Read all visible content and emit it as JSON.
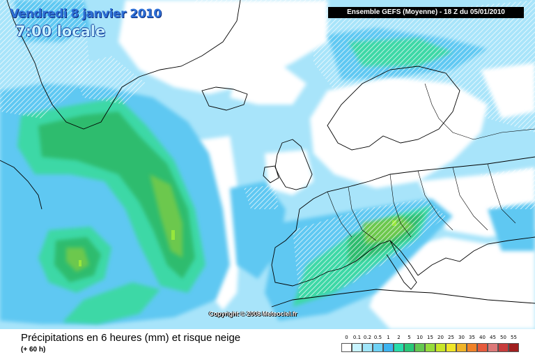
{
  "header": {
    "date": "Vendredi 8 janvier 2010",
    "time": "7:00 locale",
    "run": "Ensemble GEFS (Moyenne)  -  18 Z du 05/01/2010"
  },
  "copyright": "Copyright © 2008 Meteociel.fr",
  "legend": {
    "title": "Précipitations en 6 heures (mm) et risque neige",
    "subtitle": "(+ 60 h)",
    "scale": [
      {
        "label": "0",
        "color": "#ffffff"
      },
      {
        "label": "0.1",
        "color": "#c8f4ff"
      },
      {
        "label": "0.2",
        "color": "#a0e6fa"
      },
      {
        "label": "0.5",
        "color": "#6ed2f5"
      },
      {
        "label": "1",
        "color": "#3cb4f0"
      },
      {
        "label": "2",
        "color": "#28dcaa"
      },
      {
        "label": "5",
        "color": "#28c878"
      },
      {
        "label": "10",
        "color": "#64c850"
      },
      {
        "label": "15",
        "color": "#96dc3c"
      },
      {
        "label": "20",
        "color": "#c8e628"
      },
      {
        "label": "25",
        "color": "#f0e628"
      },
      {
        "label": "30",
        "color": "#f0b428"
      },
      {
        "label": "35",
        "color": "#f08228"
      },
      {
        "label": "40",
        "color": "#e65a3c"
      },
      {
        "label": "45",
        "color": "#dc7878"
      },
      {
        "label": "50",
        "color": "#c83c3c"
      },
      {
        "label": "55",
        "color": "#a01e1e"
      }
    ]
  }
}
